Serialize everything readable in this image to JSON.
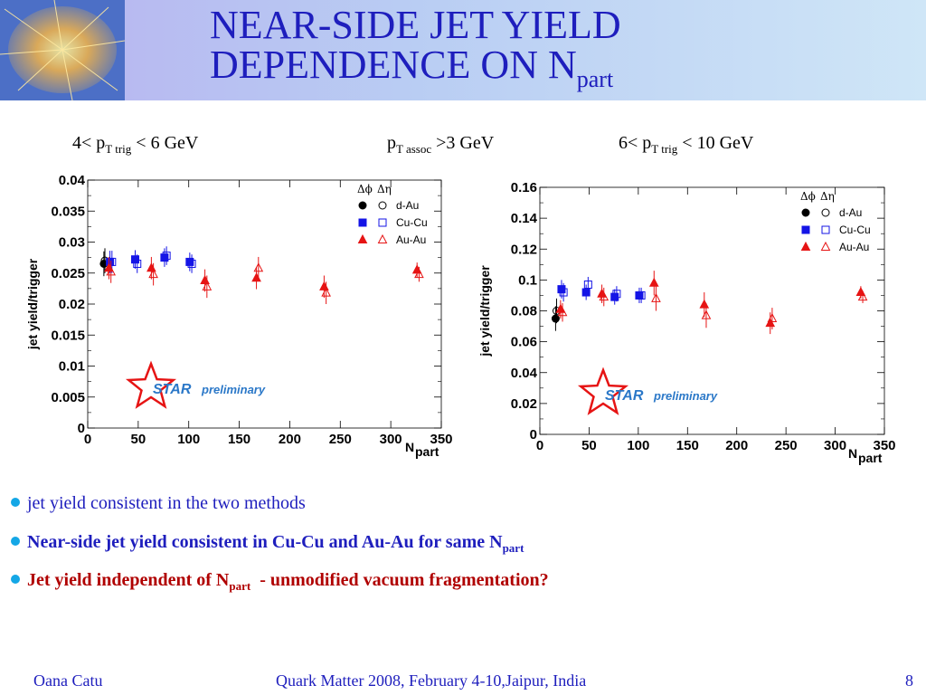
{
  "slide": {
    "title_main_line1": "NEAR-SIDE JET YIELD",
    "title_main_line2": "DEPENDENCE ON N",
    "title_sub": "part"
  },
  "conditions": {
    "left": {
      "pre": "4< p",
      "sub": "T trig",
      "post": " < 6 GeV"
    },
    "center": {
      "pre": "p",
      "sub": "T assoc",
      "post": " >3 GeV"
    },
    "right": {
      "pre": "6< p",
      "sub": "T trig",
      "post": " < 10 GeV"
    }
  },
  "legend": {
    "col1": "Δϕ",
    "col2": "Δη",
    "entries": [
      "d-Au",
      "Cu-Cu",
      "Au-Au"
    ]
  },
  "star_label": {
    "star": "STAR",
    "prelim": "preliminary"
  },
  "colors": {
    "dAu": "#000000",
    "CuCu": "#1414e6",
    "AuAu": "#e61414",
    "title": "#1e1ebd",
    "bullet_dot": "#14a7e6",
    "bullet3": "#b00000",
    "star": "#e61414",
    "star_text": "#2b78c8"
  },
  "chart_data": [
    {
      "type": "scatter",
      "ylabel": "jet yield/trigger",
      "xlabel": "N",
      "xlabel_sub": "part",
      "xlim": [
        0,
        350
      ],
      "ylim": [
        0,
        0.04
      ],
      "xticks": [
        "0",
        "50",
        "100",
        "150",
        "200",
        "250",
        "300",
        "350"
      ],
      "yticks": [
        "0",
        "0.005",
        "0.01",
        "0.015",
        "0.02",
        "0.025",
        "0.03",
        "0.035",
        "0.04"
      ],
      "series": [
        {
          "name": "d-Au",
          "method": "Δϕ",
          "color": "#000000",
          "marker": "circle-filled",
          "x": [
            16
          ],
          "y": [
            0.0265
          ],
          "yerr": [
            0.002
          ]
        },
        {
          "name": "d-Au",
          "method": "Δη",
          "color": "#000000",
          "marker": "circle-open",
          "x": [
            17
          ],
          "y": [
            0.027
          ],
          "yerr": [
            0.002
          ]
        },
        {
          "name": "Cu-Cu",
          "method": "Δϕ",
          "color": "#1414e6",
          "marker": "square-filled",
          "x": [
            22,
            47,
            76,
            101
          ],
          "y": [
            0.0268,
            0.0272,
            0.0275,
            0.0268
          ],
          "yerr": [
            0.0018,
            0.0015,
            0.0015,
            0.0015
          ]
        },
        {
          "name": "Cu-Cu",
          "method": "Δη",
          "color": "#1414e6",
          "marker": "square-open",
          "x": [
            24,
            49,
            78,
            103
          ],
          "y": [
            0.0268,
            0.0265,
            0.0278,
            0.0265
          ],
          "yerr": [
            0.0018,
            0.0015,
            0.0015,
            0.0015
          ]
        },
        {
          "name": "Au-Au",
          "method": "Δϕ",
          "color": "#e61414",
          "marker": "triangle-filled",
          "x": [
            21,
            63,
            116,
            167,
            234,
            326
          ],
          "y": [
            0.0258,
            0.0258,
            0.0238,
            0.0242,
            0.0228,
            0.0255
          ],
          "yerr": [
            0.0018,
            0.0018,
            0.0018,
            0.0018,
            0.0018,
            0.0012
          ]
        },
        {
          "name": "Au-Au",
          "method": "Δη",
          "color": "#e61414",
          "marker": "triangle-open",
          "x": [
            23,
            65,
            118,
            169,
            236,
            328
          ],
          "y": [
            0.0252,
            0.0248,
            0.0228,
            0.0258,
            0.0218,
            0.0248
          ],
          "yerr": [
            0.0018,
            0.0018,
            0.0018,
            0.0018,
            0.0018,
            0.0012
          ]
        }
      ]
    },
    {
      "type": "scatter",
      "ylabel": "jet yield/trigger",
      "xlabel": "N",
      "xlabel_sub": "part",
      "xlim": [
        0,
        350
      ],
      "ylim": [
        0,
        0.16
      ],
      "xticks": [
        "0",
        "50",
        "100",
        "150",
        "200",
        "250",
        "300",
        "350"
      ],
      "yticks": [
        "0",
        "0.02",
        "0.04",
        "0.06",
        "0.08",
        "0.1",
        "0.12",
        "0.14",
        "0.16"
      ],
      "series": [
        {
          "name": "d-Au",
          "method": "Δϕ",
          "color": "#000000",
          "marker": "circle-filled",
          "x": [
            16
          ],
          "y": [
            0.075
          ],
          "yerr": [
            0.008
          ]
        },
        {
          "name": "d-Au",
          "method": "Δη",
          "color": "#000000",
          "marker": "circle-open",
          "x": [
            17
          ],
          "y": [
            0.08
          ],
          "yerr": [
            0.008
          ]
        },
        {
          "name": "Cu-Cu",
          "method": "Δϕ",
          "color": "#1414e6",
          "marker": "square-filled",
          "x": [
            22,
            47,
            76,
            101
          ],
          "y": [
            0.094,
            0.092,
            0.089,
            0.09
          ],
          "yerr": [
            0.006,
            0.005,
            0.005,
            0.005
          ]
        },
        {
          "name": "Cu-Cu",
          "method": "Δη",
          "color": "#1414e6",
          "marker": "square-open",
          "x": [
            24,
            49,
            78,
            103
          ],
          "y": [
            0.092,
            0.097,
            0.091,
            0.09
          ],
          "yerr": [
            0.006,
            0.005,
            0.005,
            0.005
          ]
        },
        {
          "name": "Au-Au",
          "method": "Δϕ",
          "color": "#e61414",
          "marker": "triangle-filled",
          "x": [
            21,
            63,
            116,
            167,
            234,
            326
          ],
          "y": [
            0.081,
            0.091,
            0.098,
            0.084,
            0.072,
            0.092
          ],
          "yerr": [
            0.006,
            0.006,
            0.008,
            0.008,
            0.007,
            0.004
          ]
        },
        {
          "name": "Au-Au",
          "method": "Δη",
          "color": "#e61414",
          "marker": "triangle-open",
          "x": [
            23,
            65,
            118,
            169,
            236,
            328
          ],
          "y": [
            0.079,
            0.089,
            0.088,
            0.077,
            0.075,
            0.089
          ],
          "yerr": [
            0.006,
            0.006,
            0.008,
            0.008,
            0.007,
            0.004
          ]
        }
      ]
    }
  ],
  "bullets": [
    {
      "text": "jet yield consistent in the two methods",
      "color": "#1e1ebd"
    },
    {
      "text": "Near-side jet yield consistent in Cu-Cu and Au-Au for same N",
      "sub": "part",
      "color": "#1e1ebd"
    },
    {
      "text": "Jet yield independent of N",
      "sub": "part",
      "tail": "  - unmodified vacuum fragmentation?",
      "color": "#b00000"
    }
  ],
  "footer": {
    "author": "Oana Catu",
    "conference": "Quark Matter 2008, February 4-10,Jaipur, India",
    "page": "8"
  }
}
